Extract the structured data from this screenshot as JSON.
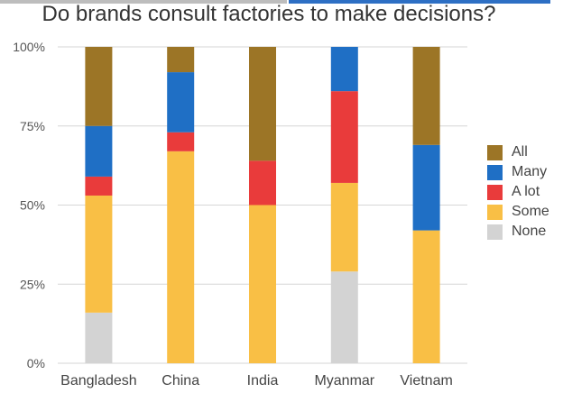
{
  "chart_data": {
    "type": "bar",
    "stacked": true,
    "title": "Do brands consult factories to make decisions?",
    "categories": [
      "Bangladesh",
      "China",
      "India",
      "Myanmar",
      "Vietnam"
    ],
    "ylim": [
      0,
      100
    ],
    "yticks": [
      0,
      25,
      50,
      75,
      100
    ],
    "ytick_labels": [
      "0%",
      "25%",
      "50%",
      "75%",
      "100%"
    ],
    "grid": true,
    "legend_position": "right",
    "series": [
      {
        "name": "None",
        "color": "#d3d3d3",
        "values": [
          16,
          0,
          0,
          29,
          0
        ]
      },
      {
        "name": "Some",
        "color": "#f9bf45",
        "values": [
          37,
          67,
          50,
          28,
          42
        ]
      },
      {
        "name": "A lot",
        "color": "#e93b3b",
        "values": [
          6,
          6,
          0,
          0,
          0
        ]
      },
      {
        "name": "",
        "color": "#e93b3b",
        "values": [
          0,
          0,
          14,
          29,
          0
        ]
      },
      {
        "name": "Many",
        "color": "#1f6fc5",
        "values": [
          16,
          19,
          0,
          14,
          27
        ]
      },
      {
        "name": "All",
        "color": "#9c7526",
        "values": [
          25,
          8,
          36,
          0,
          31
        ]
      }
    ],
    "legend": [
      {
        "label": "All",
        "color": "#9c7526"
      },
      {
        "label": "Many",
        "color": "#1f6fc5"
      },
      {
        "label": "A lot",
        "color": "#e93b3b"
      },
      {
        "label": "Some",
        "color": "#f9bf45"
      },
      {
        "label": "None",
        "color": "#d3d3d3"
      }
    ]
  }
}
